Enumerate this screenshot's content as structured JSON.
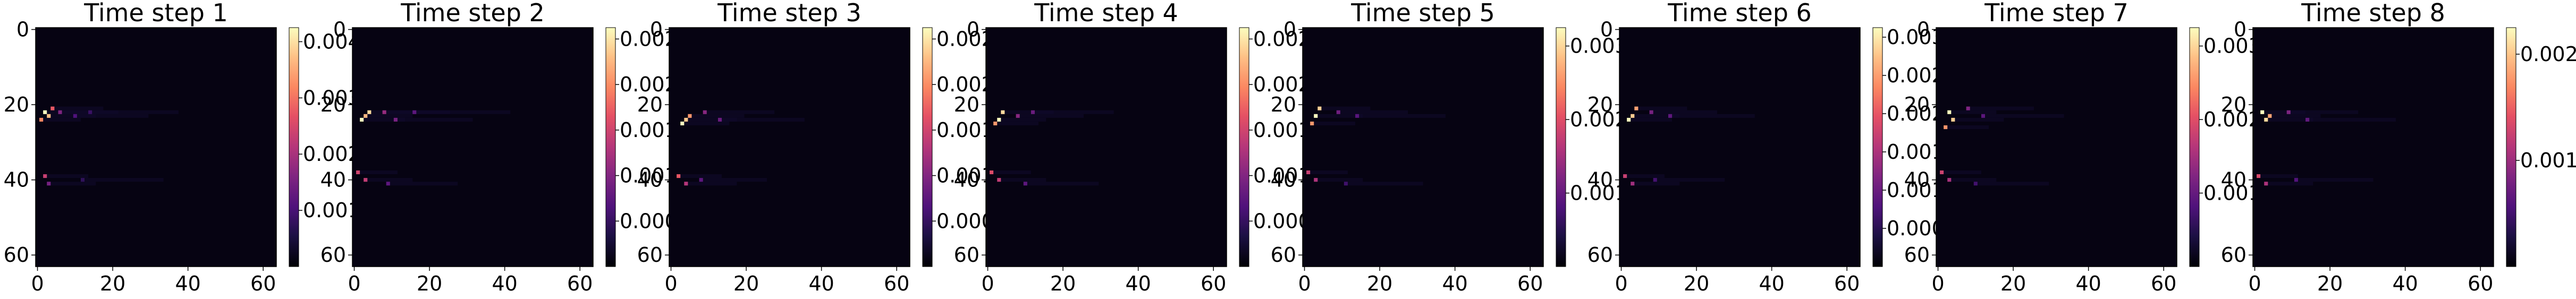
{
  "chart_data": [
    {
      "type": "heatmap",
      "title": "Time step 1",
      "x_range": [
        0,
        63
      ],
      "y_range": [
        0,
        63
      ],
      "x_ticks": [
        "0",
        "20",
        "40",
        "60"
      ],
      "y_ticks": [
        "0",
        "20",
        "40",
        "60"
      ],
      "colorbar_ticks": [
        "0.001",
        "0.002",
        "0.003",
        "0.004"
      ],
      "colorbar_range": [
        0,
        0.004
      ],
      "colormap": "magma",
      "hot_spots": [
        {
          "x": 2,
          "y": 22,
          "v": 0.004
        },
        {
          "x": 3,
          "y": 23,
          "v": 0.0035
        },
        {
          "x": 1,
          "y": 24,
          "v": 0.003
        },
        {
          "x": 4,
          "y": 21,
          "v": 0.0026
        },
        {
          "x": 2,
          "y": 39,
          "v": 0.0022
        },
        {
          "x": 6,
          "y": 22,
          "v": 0.0015
        },
        {
          "x": 3,
          "y": 41,
          "v": 0.0014
        },
        {
          "x": 10,
          "y": 23,
          "v": 0.001
        },
        {
          "x": 14,
          "y": 22,
          "v": 0.0008
        },
        {
          "x": 12,
          "y": 40,
          "v": 0.0007
        }
      ]
    },
    {
      "type": "heatmap",
      "title": "Time step 2",
      "x_range": [
        0,
        63
      ],
      "y_range": [
        0,
        63
      ],
      "x_ticks": [
        "0",
        "20",
        "40",
        "60"
      ],
      "y_ticks": [
        "0",
        "20",
        "40",
        "60"
      ],
      "colorbar_ticks": [
        "0.000",
        "0.001",
        "0.001",
        "0.002",
        "0.002"
      ],
      "colorbar_range": [
        0,
        0.0028
      ],
      "colormap": "magma",
      "hot_spots": [
        {
          "x": 2,
          "y": 24,
          "v": 0.0028
        },
        {
          "x": 4,
          "y": 22,
          "v": 0.0026
        },
        {
          "x": 3,
          "y": 23,
          "v": 0.0024
        },
        {
          "x": 1,
          "y": 38,
          "v": 0.0016
        },
        {
          "x": 3,
          "y": 40,
          "v": 0.0015
        },
        {
          "x": 8,
          "y": 22,
          "v": 0.0012
        },
        {
          "x": 11,
          "y": 24,
          "v": 0.001
        },
        {
          "x": 16,
          "y": 22,
          "v": 0.0008
        },
        {
          "x": 9,
          "y": 41,
          "v": 0.0008
        }
      ]
    },
    {
      "type": "heatmap",
      "title": "Time step 3",
      "x_range": [
        0,
        63
      ],
      "y_range": [
        0,
        63
      ],
      "x_ticks": [
        "0",
        "20",
        "40",
        "60"
      ],
      "y_ticks": [
        "0",
        "20",
        "40",
        "60"
      ],
      "colorbar_ticks": [
        "0.000",
        "0.001",
        "0.001",
        "0.002",
        "0.002"
      ],
      "colorbar_range": [
        0,
        0.0028
      ],
      "colormap": "magma",
      "hot_spots": [
        {
          "x": 3,
          "y": 25,
          "v": 0.0028
        },
        {
          "x": 4,
          "y": 24,
          "v": 0.0025
        },
        {
          "x": 5,
          "y": 23,
          "v": 0.0022
        },
        {
          "x": 2,
          "y": 39,
          "v": 0.0018
        },
        {
          "x": 4,
          "y": 41,
          "v": 0.0014
        },
        {
          "x": 9,
          "y": 22,
          "v": 0.0011
        },
        {
          "x": 13,
          "y": 24,
          "v": 0.0009
        },
        {
          "x": 8,
          "y": 40,
          "v": 0.0008
        }
      ]
    },
    {
      "type": "heatmap",
      "title": "Time step 4",
      "x_range": [
        0,
        63
      ],
      "y_range": [
        0,
        63
      ],
      "x_ticks": [
        "0",
        "20",
        "40",
        "60"
      ],
      "y_ticks": [
        "0",
        "20",
        "40",
        "60"
      ],
      "colorbar_ticks": [
        "0.000",
        "0.001",
        "0.001",
        "0.002",
        "0.002"
      ],
      "colorbar_range": [
        0,
        0.0028
      ],
      "colormap": "magma",
      "hot_spots": [
        {
          "x": 3,
          "y": 24,
          "v": 0.0028
        },
        {
          "x": 4,
          "y": 22,
          "v": 0.0026
        },
        {
          "x": 2,
          "y": 25,
          "v": 0.0022
        },
        {
          "x": 1,
          "y": 38,
          "v": 0.0017
        },
        {
          "x": 3,
          "y": 40,
          "v": 0.0015
        },
        {
          "x": 8,
          "y": 23,
          "v": 0.0011
        },
        {
          "x": 12,
          "y": 22,
          "v": 0.0009
        },
        {
          "x": 10,
          "y": 41,
          "v": 0.0008
        }
      ]
    },
    {
      "type": "heatmap",
      "title": "Time step 5",
      "x_range": [
        0,
        63
      ],
      "y_range": [
        0,
        63
      ],
      "x_ticks": [
        "0",
        "20",
        "40",
        "60"
      ],
      "y_ticks": [
        "0",
        "20",
        "40",
        "60"
      ],
      "colorbar_ticks": [
        "0.001",
        "0.002",
        "0.003"
      ],
      "colorbar_range": [
        0,
        0.0033
      ],
      "colormap": "magma",
      "hot_spots": [
        {
          "x": 3,
          "y": 23,
          "v": 0.0033
        },
        {
          "x": 4,
          "y": 21,
          "v": 0.003
        },
        {
          "x": 2,
          "y": 25,
          "v": 0.0026
        },
        {
          "x": 1,
          "y": 38,
          "v": 0.0018
        },
        {
          "x": 3,
          "y": 40,
          "v": 0.0016
        },
        {
          "x": 9,
          "y": 22,
          "v": 0.0011
        },
        {
          "x": 14,
          "y": 23,
          "v": 0.0009
        },
        {
          "x": 11,
          "y": 41,
          "v": 0.0007
        }
      ]
    },
    {
      "type": "heatmap",
      "title": "Time step 6",
      "x_range": [
        0,
        63
      ],
      "y_range": [
        0,
        63
      ],
      "x_ticks": [
        "0",
        "20",
        "40",
        "60"
      ],
      "y_ticks": [
        "0",
        "20",
        "40",
        "60"
      ],
      "colorbar_ticks": [
        "0.000",
        "0.001",
        "0.001",
        "0.002",
        "0.002",
        "0.003"
      ],
      "colorbar_range": [
        0,
        0.0031
      ],
      "colormap": "magma",
      "hot_spots": [
        {
          "x": 2,
          "y": 24,
          "v": 0.0031
        },
        {
          "x": 3,
          "y": 23,
          "v": 0.0028
        },
        {
          "x": 4,
          "y": 21,
          "v": 0.0025
        },
        {
          "x": 1,
          "y": 39,
          "v": 0.0017
        },
        {
          "x": 3,
          "y": 41,
          "v": 0.0014
        },
        {
          "x": 8,
          "y": 22,
          "v": 0.0011
        },
        {
          "x": 13,
          "y": 23,
          "v": 0.0009
        },
        {
          "x": 9,
          "y": 40,
          "v": 0.0007
        }
      ]
    },
    {
      "type": "heatmap",
      "title": "Time step 7",
      "x_range": [
        0,
        63
      ],
      "y_range": [
        0,
        63
      ],
      "x_ticks": [
        "0",
        "20",
        "40",
        "60"
      ],
      "y_ticks": [
        "0",
        "20",
        "40",
        "60"
      ],
      "colorbar_ticks": [
        "0.001",
        "0.002",
        "0.003"
      ],
      "colorbar_range": [
        0,
        0.0032
      ],
      "colormap": "magma",
      "hot_spots": [
        {
          "x": 3,
          "y": 22,
          "v": 0.0032
        },
        {
          "x": 4,
          "y": 24,
          "v": 0.0029
        },
        {
          "x": 2,
          "y": 26,
          "v": 0.0025
        },
        {
          "x": 1,
          "y": 38,
          "v": 0.0018
        },
        {
          "x": 3,
          "y": 40,
          "v": 0.0015
        },
        {
          "x": 8,
          "y": 21,
          "v": 0.0012
        },
        {
          "x": 12,
          "y": 23,
          "v": 0.0009
        },
        {
          "x": 10,
          "y": 41,
          "v": 0.0007
        }
      ]
    },
    {
      "type": "heatmap",
      "title": "Time step 8",
      "x_range": [
        0,
        63
      ],
      "y_range": [
        0,
        63
      ],
      "x_ticks": [
        "0",
        "20",
        "40",
        "60"
      ],
      "y_ticks": [
        "0",
        "20",
        "40",
        "60"
      ],
      "colorbar_ticks": [
        "0.001",
        "0.002"
      ],
      "colorbar_range": [
        0,
        0.0027
      ],
      "colormap": "magma",
      "hot_spots": [
        {
          "x": 2,
          "y": 22,
          "v": 0.0027
        },
        {
          "x": 3,
          "y": 24,
          "v": 0.0025
        },
        {
          "x": 4,
          "y": 23,
          "v": 0.0022
        },
        {
          "x": 1,
          "y": 39,
          "v": 0.0016
        },
        {
          "x": 3,
          "y": 41,
          "v": 0.0013
        },
        {
          "x": 9,
          "y": 22,
          "v": 0.001
        },
        {
          "x": 14,
          "y": 24,
          "v": 0.0008
        },
        {
          "x": 11,
          "y": 40,
          "v": 0.0007
        }
      ]
    }
  ]
}
